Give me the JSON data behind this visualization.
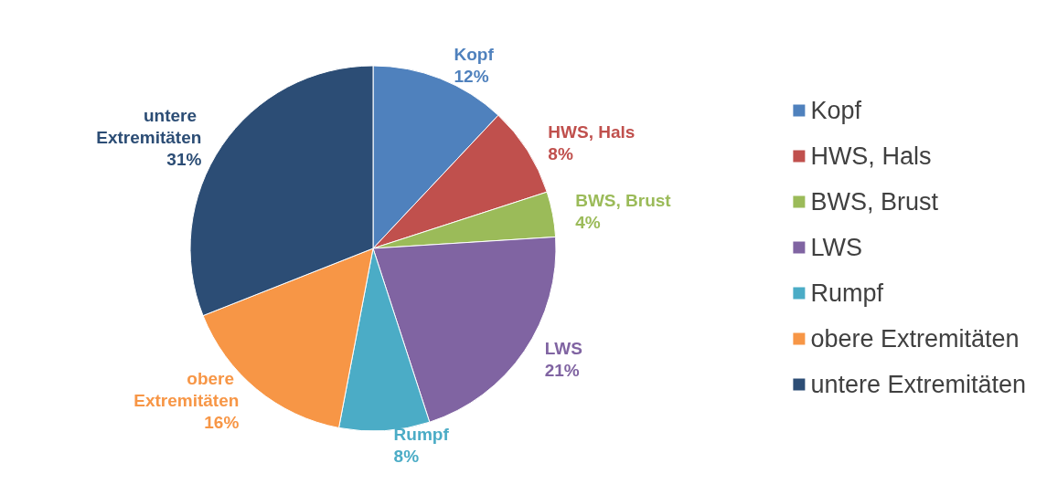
{
  "chart_data": {
    "type": "pie",
    "categories": [
      "Kopf",
      "HWS, Hals",
      "BWS, Brust",
      "LWS",
      "Rumpf",
      "obere Extremitäten",
      "untere Extremitäten"
    ],
    "values": [
      12,
      8,
      4,
      21,
      8,
      16,
      31
    ],
    "colors": [
      "#4f81bd",
      "#c0504d",
      "#9bbb59",
      "#8064a2",
      "#4bacc6",
      "#f79646",
      "#2c4d75"
    ],
    "value_labels": [
      "12%",
      "8%",
      "4%",
      "21%",
      "8%",
      "16%",
      "31%"
    ],
    "legend": "right"
  }
}
